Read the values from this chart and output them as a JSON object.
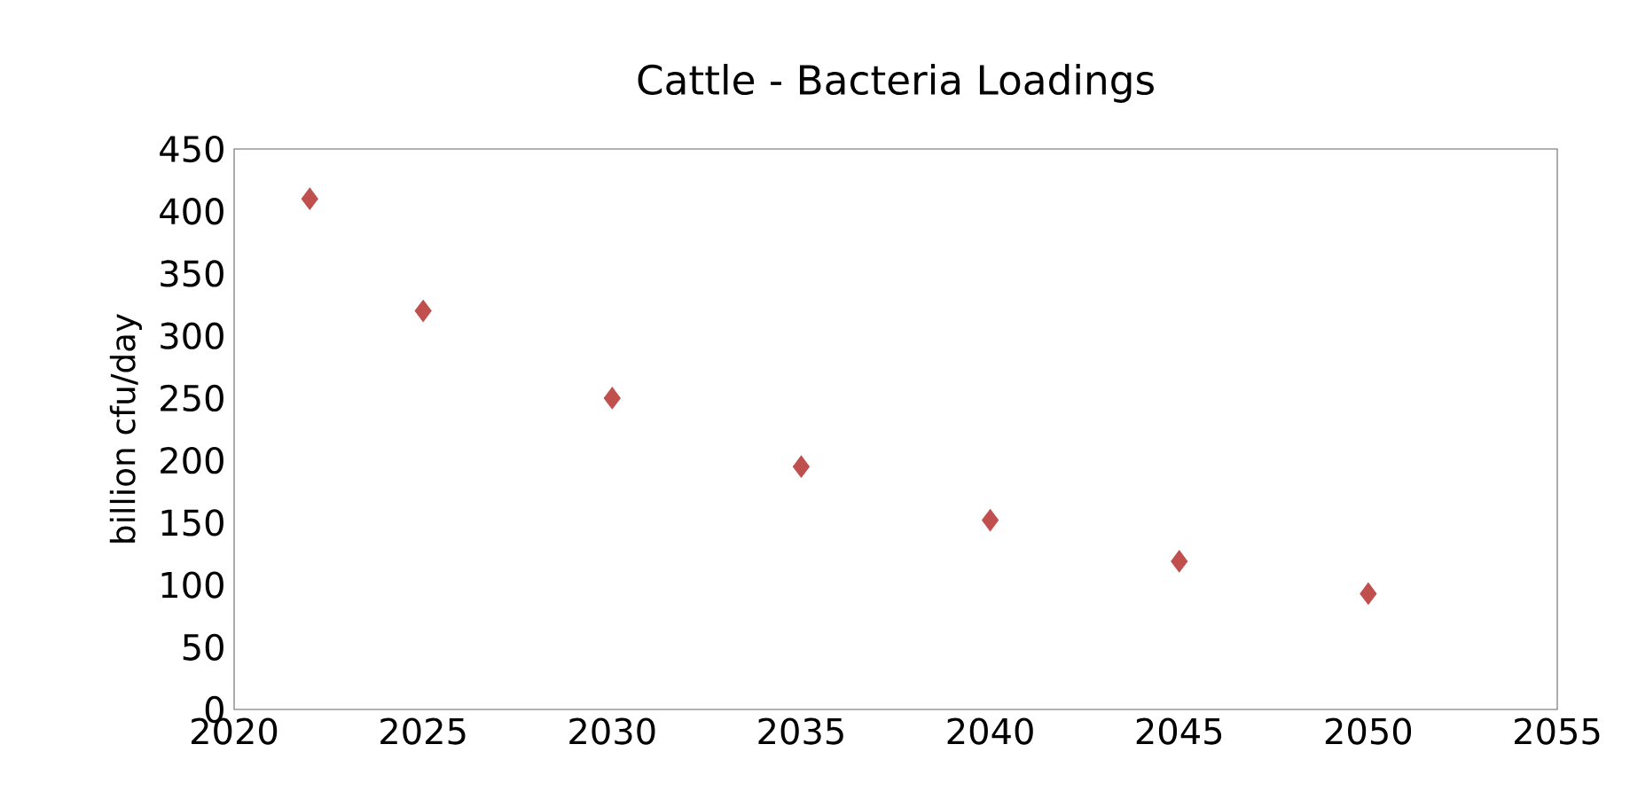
{
  "chart_data": {
    "type": "scatter",
    "title": "Cattle - Bacteria Loadings",
    "ylabel": "billion cfu/day",
    "x": [
      2022,
      2025,
      2030,
      2035,
      2040,
      2045,
      2050
    ],
    "series": [
      {
        "color": "#c0504d",
        "values": [
          410,
          320,
          250,
          195,
          152,
          119,
          93
        ]
      }
    ],
    "marker": "diamond",
    "xlim": [
      2020,
      2055
    ],
    "xticks": [
      2020,
      2025,
      2030,
      2035,
      2040,
      2045,
      2050,
      2055
    ],
    "ylim": [
      0,
      450
    ],
    "yticks": [
      0,
      50,
      100,
      150,
      200,
      250,
      300,
      350,
      400,
      450
    ]
  }
}
